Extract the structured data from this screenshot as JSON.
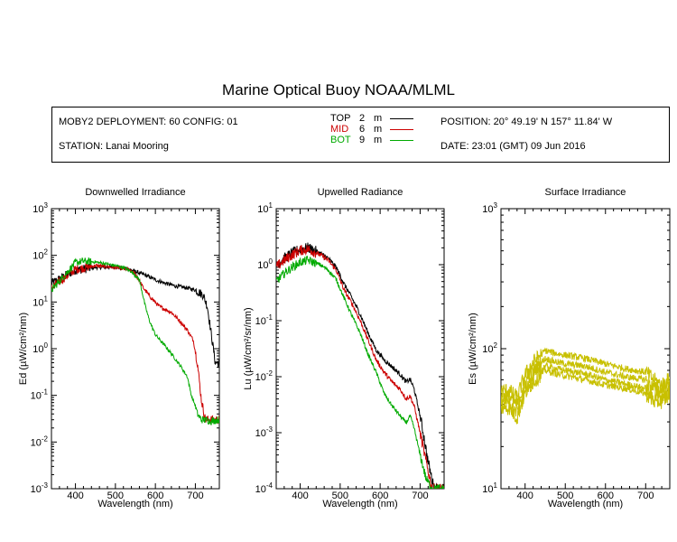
{
  "title": "Marine Optical Buoy NOAA/MLML",
  "info": {
    "deployment": "MOBY2 DEPLOYMENT: 60 CONFIG: 01",
    "station": "STATION: Lanai Mooring",
    "position": "POSITION: 20° 49.19' N   157° 11.84' W",
    "date": "DATE: 23:01 (GMT) 09 Jun 2016"
  },
  "legend": [
    {
      "name": "TOP",
      "depth": "2",
      "unit": "m",
      "color": "#000000"
    },
    {
      "name": "MID",
      "depth": "6",
      "unit": "m",
      "color": "#cc0000"
    },
    {
      "name": "BOT",
      "depth": "9",
      "unit": "m",
      "color": "#00aa00"
    }
  ],
  "chart_data": [
    {
      "type": "line",
      "title": "Downwelled Irradiance",
      "xlabel": "Wavelength (nm)",
      "ylabel": "Ed  (µW/cm²/nm)",
      "log_y": true,
      "xlim": [
        340,
        760
      ],
      "ylim": [
        0.001,
        1000
      ],
      "xticks": [
        400,
        500,
        600,
        700
      ],
      "yticks": [
        {
          "exp": "-3",
          "value": 0.001
        },
        {
          "exp": "-2",
          "value": 0.01
        },
        {
          "exp": "-1",
          "value": 0.1
        },
        {
          "exp": "0",
          "value": 1
        },
        {
          "exp": "1",
          "value": 10
        },
        {
          "exp": "2",
          "value": 100
        },
        {
          "exp": "3",
          "value": 1000
        }
      ],
      "series": [
        {
          "name": "TOP",
          "color": "#000000",
          "noise": 0.12,
          "points": [
            [
              340,
              25
            ],
            [
              370,
              35
            ],
            [
              400,
              48
            ],
            [
              450,
              55
            ],
            [
              500,
              56
            ],
            [
              530,
              52
            ],
            [
              560,
              42
            ],
            [
              580,
              36
            ],
            [
              600,
              30
            ],
            [
              620,
              26
            ],
            [
              650,
              22
            ],
            [
              680,
              20
            ],
            [
              700,
              18
            ],
            [
              710,
              16
            ],
            [
              720,
              14
            ],
            [
              730,
              8
            ],
            [
              740,
              2
            ],
            [
              750,
              0.5
            ],
            [
              757,
              0.5
            ]
          ]
        },
        {
          "name": "MID",
          "color": "#cc0000",
          "noise": 0.12,
          "points": [
            [
              340,
              20
            ],
            [
              370,
              32
            ],
            [
              400,
              50
            ],
            [
              450,
              60
            ],
            [
              500,
              55
            ],
            [
              530,
              50
            ],
            [
              550,
              40
            ],
            [
              570,
              20
            ],
            [
              590,
              12
            ],
            [
              610,
              8
            ],
            [
              640,
              6
            ],
            [
              660,
              4
            ],
            [
              680,
              2.5
            ],
            [
              695,
              1.5
            ],
            [
              705,
              0.5
            ],
            [
              715,
              0.08
            ],
            [
              725,
              0.03
            ],
            [
              740,
              0.03
            ],
            [
              757,
              0.03
            ]
          ]
        },
        {
          "name": "BOT",
          "color": "#00aa00",
          "noise": 0.1,
          "points": [
            [
              340,
              18
            ],
            [
              370,
              35
            ],
            [
              400,
              70
            ],
            [
              420,
              75
            ],
            [
              450,
              72
            ],
            [
              480,
              65
            ],
            [
              500,
              60
            ],
            [
              520,
              55
            ],
            [
              540,
              45
            ],
            [
              560,
              30
            ],
            [
              575,
              8
            ],
            [
              585,
              4
            ],
            [
              600,
              2
            ],
            [
              630,
              1
            ],
            [
              650,
              0.6
            ],
            [
              665,
              0.4
            ],
            [
              680,
              0.25
            ],
            [
              690,
              0.1
            ],
            [
              700,
              0.06
            ],
            [
              705,
              0.04
            ],
            [
              715,
              0.03
            ],
            [
              725,
              0.03
            ],
            [
              740,
              0.028
            ],
            [
              757,
              0.03
            ]
          ]
        }
      ]
    },
    {
      "type": "line",
      "title": "Upwelled Radiance",
      "xlabel": "Wavelength (nm)",
      "ylabel": "Lu  (µW/cm²/sr/nm)",
      "log_y": true,
      "xlim": [
        340,
        760
      ],
      "ylim": [
        0.0001,
        10
      ],
      "xticks": [
        400,
        500,
        600,
        700
      ],
      "yticks": [
        {
          "exp": "-4",
          "value": 0.0001
        },
        {
          "exp": "-3",
          "value": 0.001
        },
        {
          "exp": "-2",
          "value": 0.01
        },
        {
          "exp": "-1",
          "value": 0.1
        },
        {
          "exp": "0",
          "value": 1
        },
        {
          "exp": "1",
          "value": 10
        }
      ],
      "series": [
        {
          "name": "TOP",
          "color": "#000000",
          "noise": 0.12,
          "points": [
            [
              340,
              1
            ],
            [
              360,
              1.3
            ],
            [
              380,
              1.6
            ],
            [
              400,
              1.9
            ],
            [
              420,
              2.0
            ],
            [
              450,
              1.6
            ],
            [
              470,
              1.3
            ],
            [
              490,
              0.9
            ],
            [
              510,
              0.45
            ],
            [
              530,
              0.25
            ],
            [
              550,
              0.13
            ],
            [
              570,
              0.06
            ],
            [
              590,
              0.03
            ],
            [
              610,
              0.02
            ],
            [
              630,
              0.015
            ],
            [
              650,
              0.011
            ],
            [
              665,
              0.008
            ],
            [
              675,
              0.009
            ],
            [
              685,
              0.006
            ],
            [
              700,
              0.002
            ],
            [
              710,
              0.0008
            ],
            [
              720,
              0.0003
            ],
            [
              735,
              0.0001
            ],
            [
              750,
              0.0001
            ]
          ]
        },
        {
          "name": "MID",
          "color": "#cc0000",
          "noise": 0.12,
          "points": [
            [
              340,
              0.9
            ],
            [
              360,
              1.2
            ],
            [
              380,
              1.5
            ],
            [
              400,
              1.8
            ],
            [
              420,
              1.9
            ],
            [
              450,
              1.5
            ],
            [
              470,
              1.2
            ],
            [
              490,
              0.8
            ],
            [
              510,
              0.35
            ],
            [
              530,
              0.2
            ],
            [
              550,
              0.1
            ],
            [
              570,
              0.045
            ],
            [
              590,
              0.02
            ],
            [
              610,
              0.012
            ],
            [
              630,
              0.008
            ],
            [
              650,
              0.006
            ],
            [
              665,
              0.004
            ],
            [
              675,
              0.0045
            ],
            [
              685,
              0.003
            ],
            [
              700,
              0.001
            ],
            [
              715,
              0.0003
            ],
            [
              730,
              0.0001
            ],
            [
              750,
              0.0001
            ]
          ]
        },
        {
          "name": "BOT",
          "color": "#00aa00",
          "noise": 0.1,
          "points": [
            [
              340,
              0.5
            ],
            [
              360,
              0.7
            ],
            [
              380,
              0.9
            ],
            [
              400,
              1.1
            ],
            [
              420,
              1.2
            ],
            [
              450,
              1.0
            ],
            [
              470,
              0.8
            ],
            [
              490,
              0.55
            ],
            [
              510,
              0.25
            ],
            [
              530,
              0.12
            ],
            [
              550,
              0.06
            ],
            [
              570,
              0.025
            ],
            [
              590,
              0.012
            ],
            [
              610,
              0.005
            ],
            [
              630,
              0.003
            ],
            [
              650,
              0.002
            ],
            [
              665,
              0.0015
            ],
            [
              675,
              0.002
            ],
            [
              685,
              0.0012
            ],
            [
              700,
              0.0004
            ],
            [
              715,
              0.00015
            ],
            [
              730,
              0.0001
            ],
            [
              750,
              0.0001
            ]
          ]
        }
      ]
    },
    {
      "type": "line",
      "title": "Surface Irradiance",
      "xlabel": "Wavelength (nm)",
      "ylabel": "Es  (µW/cm²/nm)",
      "log_y": true,
      "xlim": [
        340,
        760
      ],
      "ylim": [
        10,
        1000
      ],
      "xticks": [
        400,
        500,
        600,
        700
      ],
      "yticks": [
        {
          "exp": "1",
          "value": 10
        },
        {
          "exp": "2",
          "value": 100
        },
        {
          "exp": "3",
          "value": 1000
        }
      ],
      "series": [
        {
          "name": "",
          "color": "#c8c000",
          "noise": 0.07,
          "points": [
            [
              340,
              50
            ],
            [
              360,
              50
            ],
            [
              380,
              45
            ],
            [
              400,
              65
            ],
            [
              420,
              80
            ],
            [
              450,
              97
            ],
            [
              480,
              92
            ],
            [
              500,
              90
            ],
            [
              550,
              85
            ],
            [
              600,
              78
            ],
            [
              650,
              72
            ],
            [
              700,
              68
            ],
            [
              720,
              60
            ],
            [
              740,
              55
            ],
            [
              757,
              60
            ]
          ]
        },
        {
          "name": "",
          "color": "#c8c000",
          "noise": 0.07,
          "points": [
            [
              340,
              45
            ],
            [
              360,
              45
            ],
            [
              380,
              40
            ],
            [
              400,
              58
            ],
            [
              420,
              70
            ],
            [
              450,
              85
            ],
            [
              480,
              80
            ],
            [
              500,
              78
            ],
            [
              550,
              75
            ],
            [
              600,
              68
            ],
            [
              650,
              63
            ],
            [
              700,
              60
            ],
            [
              720,
              52
            ],
            [
              740,
              50
            ],
            [
              757,
              55
            ]
          ]
        },
        {
          "name": "",
          "color": "#c8c000",
          "noise": 0.07,
          "points": [
            [
              340,
              40
            ],
            [
              360,
              40
            ],
            [
              380,
              35
            ],
            [
              400,
              52
            ],
            [
              420,
              62
            ],
            [
              450,
              75
            ],
            [
              480,
              72
            ],
            [
              500,
              70
            ],
            [
              550,
              66
            ],
            [
              600,
              60
            ],
            [
              650,
              56
            ],
            [
              700,
              52
            ],
            [
              720,
              45
            ],
            [
              740,
              45
            ],
            [
              757,
              50
            ]
          ]
        },
        {
          "name": "",
          "color": "#c8c000",
          "noise": 0.07,
          "points": [
            [
              340,
              38
            ],
            [
              360,
              38
            ],
            [
              380,
              32
            ],
            [
              400,
              48
            ],
            [
              420,
              58
            ],
            [
              450,
              70
            ],
            [
              480,
              66
            ],
            [
              500,
              64
            ],
            [
              550,
              60
            ],
            [
              600,
              55
            ],
            [
              650,
              52
            ],
            [
              700,
              48
            ],
            [
              720,
              42
            ],
            [
              740,
              42
            ],
            [
              757,
              46
            ]
          ]
        }
      ]
    }
  ]
}
